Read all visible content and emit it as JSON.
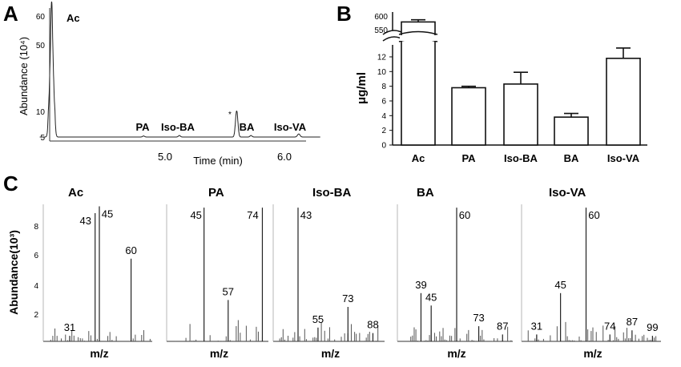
{
  "panels": {
    "A": "A",
    "B": "B",
    "C": "C"
  },
  "chart_data": [
    {
      "panel": "A",
      "type": "line",
      "xlabel": "Time (min)",
      "ylabel": "Abundance (10⁴)",
      "x_ticks": [
        "5.0",
        "6.0"
      ],
      "y_ticks": [
        "5",
        "10",
        "50",
        "60"
      ],
      "peaks": [
        {
          "label": "Ac",
          "time": 4.05,
          "height": 65
        },
        {
          "label": "PA",
          "time": 4.82,
          "height": 5.2
        },
        {
          "label": "Iso-BA",
          "time": 5.12,
          "height": 5.3
        },
        {
          "label": "*",
          "time": 5.6,
          "height": 10.2
        },
        {
          "label": "BA",
          "time": 5.72,
          "height": 5.3
        },
        {
          "label": "Iso-VA",
          "time": 6.12,
          "height": 5.6
        }
      ]
    },
    {
      "panel": "B",
      "type": "bar",
      "ylabel": "μg/ml",
      "categories": [
        "Ac",
        "PA",
        "Iso-BA",
        "BA",
        "Iso-VA"
      ],
      "values": [
        590,
        7.8,
        8.3,
        3.8,
        11.8
      ],
      "errors": [
        8,
        0.2,
        1.6,
        0.5,
        1.4
      ],
      "y_ticks_lower": [
        "0",
        "2",
        "4",
        "6",
        "8",
        "10",
        "12"
      ],
      "y_ticks_upper": [
        "550",
        "600"
      ],
      "axis_break": true
    },
    {
      "panel": "C",
      "type": "bar",
      "ylabel": "Abundance(10³)",
      "y_ticks": [
        "2",
        "4",
        "6",
        "8"
      ],
      "xlabel": "m/z",
      "spectra": [
        {
          "name": "Ac",
          "xlabel": "m/z",
          "peaks": [
            {
              "mz": 31,
              "label": "31",
              "h": 0.4
            },
            {
              "mz": 43,
              "label": "43",
              "h": 9.3
            },
            {
              "mz": 45,
              "label": "45",
              "h": 9.8
            },
            {
              "mz": 60,
              "label": "60",
              "h": 6.0
            }
          ]
        },
        {
          "name": "PA",
          "xlabel": "m/z",
          "peaks": [
            {
              "mz": 45,
              "label": "45",
              "h": 9.7
            },
            {
              "mz": 57,
              "label": "57",
              "h": 3.0
            },
            {
              "mz": 74,
              "label": "74",
              "h": 9.7
            }
          ]
        },
        {
          "name": "Iso-BA",
          "xlabel": "m/z",
          "peaks": [
            {
              "mz": 43,
              "label": "43",
              "h": 9.7
            },
            {
              "mz": 55,
              "label": "55",
              "h": 1.0
            },
            {
              "mz": 73,
              "label": "73",
              "h": 2.5
            },
            {
              "mz": 88,
              "label": "88",
              "h": 0.6
            }
          ]
        },
        {
          "name": "BA",
          "xlabel": "m/z",
          "peaks": [
            {
              "mz": 39,
              "label": "39",
              "h": 3.5
            },
            {
              "mz": 45,
              "label": "45",
              "h": 2.6
            },
            {
              "mz": 60,
              "label": "60",
              "h": 9.7
            },
            {
              "mz": 73,
              "label": "73",
              "h": 1.1
            },
            {
              "mz": 87,
              "label": "87",
              "h": 0.5
            }
          ]
        },
        {
          "name": "Iso-VA",
          "xlabel": "m/z",
          "peaks": [
            {
              "mz": 31,
              "label": "31",
              "h": 0.5
            },
            {
              "mz": 45,
              "label": "45",
              "h": 3.5
            },
            {
              "mz": 60,
              "label": "60",
              "h": 9.7
            },
            {
              "mz": 74,
              "label": "74",
              "h": 0.5
            },
            {
              "mz": 87,
              "label": "87",
              "h": 0.8
            },
            {
              "mz": 99,
              "label": "99",
              "h": 0.4
            }
          ]
        }
      ]
    }
  ]
}
